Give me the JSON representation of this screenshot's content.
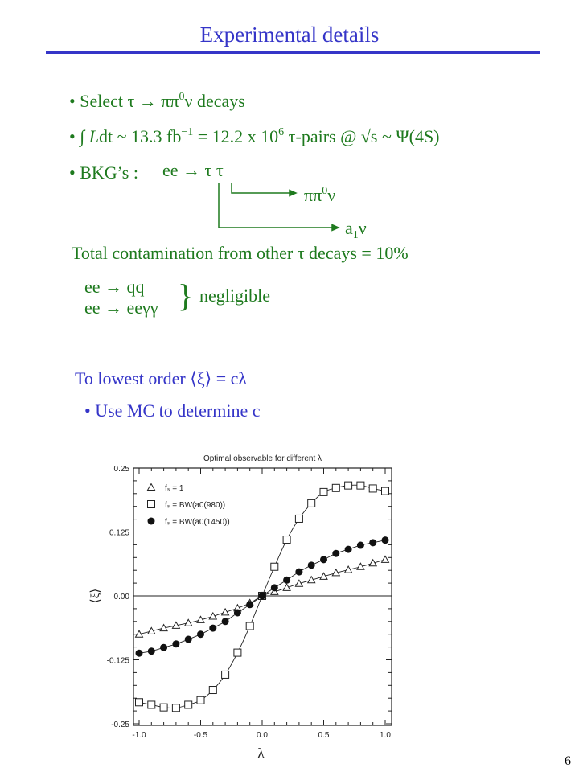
{
  "title": "Experimental details",
  "bullets": {
    "b1_pre": "• Select τ → ππ",
    "b1_sup": "0",
    "b1_post": "ν   decays",
    "b2_pre": "• ∫ ",
    "b2_L": "L",
    "b2_mid": "dt ~  13.3 fb",
    "b2_sup1": "−1",
    "b2_mid2": " = 12.2 x 10",
    "b2_sup2": "6",
    "b2_post": " τ-pairs  @ √s ~ Ψ(4S)",
    "b3_label": "• BKG’s :",
    "b3_process": "ee → τ τ",
    "branch1_pre": "ππ",
    "branch1_sup": "0",
    "branch1_post": "ν",
    "branch2_pre": "a",
    "branch2_sub": "1",
    "branch2_post": "ν",
    "contamination": "Total contamination from other τ decays  = 10%",
    "qq": "ee → qq",
    "eegg": "ee → eeγγ",
    "negligible": "negligible"
  },
  "lowest_order": "To lowest order ⟨ξ⟩ = cλ",
  "use_mc": "• Use MC to determine c",
  "page_number": "6",
  "colors": {
    "title": "#3535c8",
    "text_green": "#1e7a1e"
  },
  "chart_data": {
    "type": "scatter",
    "title": "Optimal observable for different λ",
    "xlabel": "λ",
    "ylabel": "⟨ξ⟩",
    "xlim": [
      -1.0,
      1.0
    ],
    "ylim": [
      -0.25,
      0.25
    ],
    "xticks": [
      "-1.0",
      "-0.5",
      "0.0",
      "0.5",
      "1.0"
    ],
    "yticks": [
      "0.25",
      "0.125",
      "0.00",
      "-0.125",
      "-0.25"
    ],
    "legend_position": "top-left",
    "x": [
      -1.0,
      -0.9,
      -0.8,
      -0.7,
      -0.6,
      -0.5,
      -0.4,
      -0.3,
      -0.2,
      -0.1,
      0.0,
      0.1,
      0.2,
      0.3,
      0.4,
      0.5,
      0.6,
      0.7,
      0.8,
      0.9,
      1.0
    ],
    "series": [
      {
        "name": "f_s = 1",
        "marker": "triangle",
        "values": [
          -0.075,
          -0.069,
          -0.063,
          -0.058,
          -0.053,
          -0.047,
          -0.04,
          -0.032,
          -0.024,
          -0.014,
          0.0,
          0.008,
          0.016,
          0.024,
          0.031,
          0.038,
          0.045,
          0.051,
          0.057,
          0.064,
          0.071
        ]
      },
      {
        "name": "f_s = BW(a0(980))",
        "marker": "square",
        "values": [
          -0.208,
          -0.213,
          -0.218,
          -0.219,
          -0.213,
          -0.204,
          -0.184,
          -0.154,
          -0.111,
          -0.059,
          0.0,
          0.057,
          0.11,
          0.151,
          0.181,
          0.203,
          0.211,
          0.216,
          0.216,
          0.21,
          0.205
        ]
      },
      {
        "name": "f_s = BW(a0(1450))",
        "marker": "filled-circle",
        "values": [
          -0.112,
          -0.108,
          -0.101,
          -0.094,
          -0.085,
          -0.075,
          -0.063,
          -0.05,
          -0.033,
          -0.017,
          0.0,
          0.016,
          0.031,
          0.047,
          0.06,
          0.071,
          0.083,
          0.091,
          0.099,
          0.104,
          0.109
        ]
      }
    ]
  }
}
